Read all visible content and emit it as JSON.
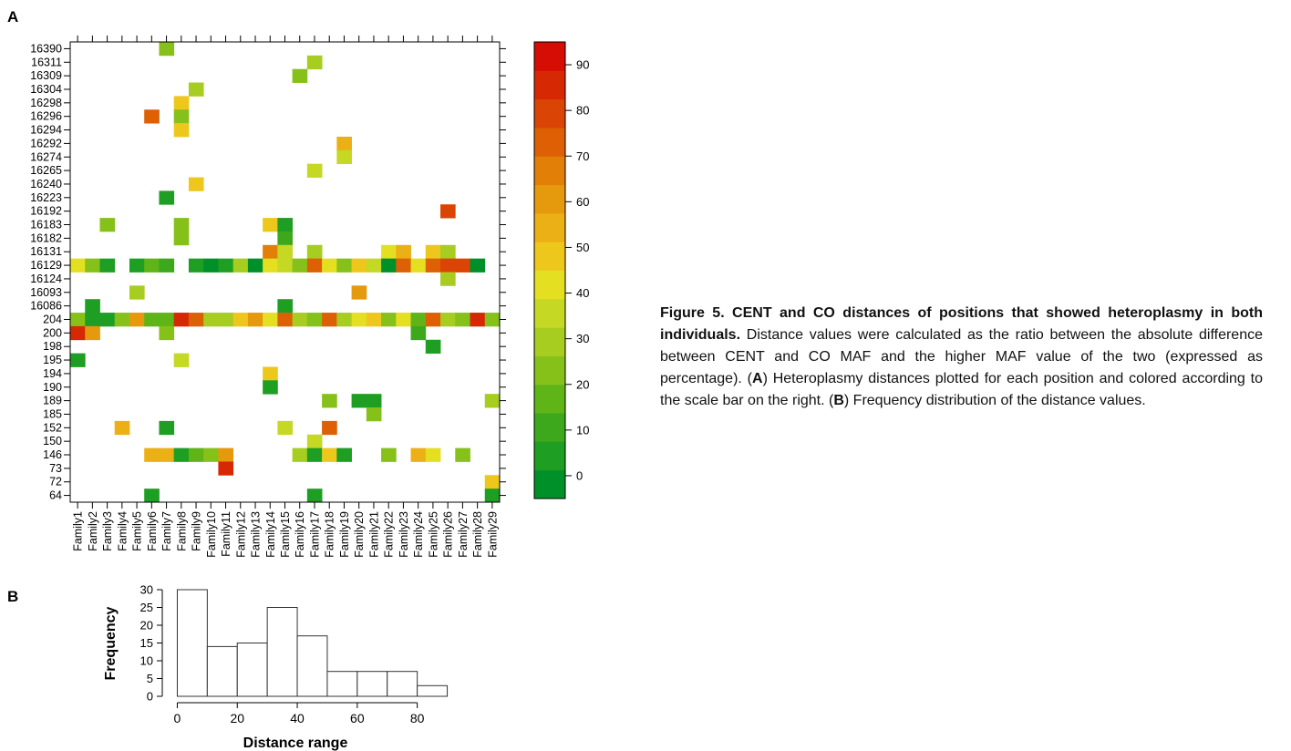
{
  "panel_a_label": "A",
  "panel_b_label": "B",
  "caption": {
    "title": "Figure 5. CENT and CO distances of positions that showed heteroplasmy in both individuals.",
    "part1": "Distance values were calculated as the ratio between the absolute difference between CENT and CO MAF and the higher MAF value of the two (expressed as percentage). (",
    "A": "A",
    "part2": ") Heteroplasmy distances plotted for each position and colored according to the scale bar on the right. (",
    "B": "B",
    "part3": ") Frequency distribution of the distance values."
  },
  "chart_data": [
    {
      "type": "heatmap",
      "x_categories": [
        "Family1",
        "Family2",
        "Family3",
        "Family4",
        "Family5",
        "Family6",
        "Family7",
        "Family8",
        "Family9",
        "Family10",
        "Family11",
        "Family12",
        "Family13",
        "Family14",
        "Family15",
        "Family16",
        "Family17",
        "Family18",
        "Family19",
        "Family20",
        "Family21",
        "Family22",
        "Family23",
        "Family24",
        "Family25",
        "Family26",
        "Family27",
        "Family28",
        "Family29"
      ],
      "y_categories": [
        "16390",
        "16311",
        "16309",
        "16304",
        "16298",
        "16296",
        "16294",
        "16292",
        "16274",
        "16265",
        "16240",
        "16223",
        "16192",
        "16183",
        "16182",
        "16131",
        "16129",
        "16124",
        "16093",
        "16086",
        "204",
        "200",
        "198",
        "195",
        "194",
        "190",
        "189",
        "185",
        "152",
        "150",
        "146",
        "73",
        "72",
        "64"
      ],
      "cells": [
        [
          "16390",
          7,
          20
        ],
        [
          "16311",
          17,
          30
        ],
        [
          "16309",
          16,
          25
        ],
        [
          "16304",
          9,
          30
        ],
        [
          "16298",
          8,
          50
        ],
        [
          "16296",
          6,
          75
        ],
        [
          "16296",
          8,
          20
        ],
        [
          "16294",
          8,
          50
        ],
        [
          "16292",
          19,
          55
        ],
        [
          "16274",
          19,
          35
        ],
        [
          "16265",
          17,
          35
        ],
        [
          "16240",
          9,
          50
        ],
        [
          "16223",
          7,
          5
        ],
        [
          "16192",
          26,
          80
        ],
        [
          "16183",
          3,
          20
        ],
        [
          "16183",
          8,
          20
        ],
        [
          "16183",
          14,
          50
        ],
        [
          "16183",
          15,
          5
        ],
        [
          "16182",
          8,
          20
        ],
        [
          "16182",
          15,
          10
        ],
        [
          "16131",
          14,
          65
        ],
        [
          "16131",
          15,
          35
        ],
        [
          "16131",
          17,
          30
        ],
        [
          "16131",
          22,
          40
        ],
        [
          "16131",
          23,
          55
        ],
        [
          "16131",
          25,
          50
        ],
        [
          "16131",
          26,
          30
        ],
        [
          "16129",
          1,
          40
        ],
        [
          "16129",
          2,
          20
        ],
        [
          "16129",
          3,
          5
        ],
        [
          "16129",
          5,
          5
        ],
        [
          "16129",
          6,
          15
        ],
        [
          "16129",
          7,
          10
        ],
        [
          "16129",
          9,
          5
        ],
        [
          "16129",
          10,
          0
        ],
        [
          "16129",
          11,
          5
        ],
        [
          "16129",
          12,
          30
        ],
        [
          "16129",
          13,
          0
        ],
        [
          "16129",
          14,
          40
        ],
        [
          "16129",
          15,
          35
        ],
        [
          "16129",
          16,
          25
        ],
        [
          "16129",
          17,
          70
        ],
        [
          "16129",
          18,
          40
        ],
        [
          "16129",
          19,
          20
        ],
        [
          "16129",
          20,
          50
        ],
        [
          "16129",
          21,
          35
        ],
        [
          "16129",
          22,
          0
        ],
        [
          "16129",
          23,
          70
        ],
        [
          "16129",
          24,
          40
        ],
        [
          "16129",
          25,
          75
        ],
        [
          "16129",
          26,
          80
        ],
        [
          "16129",
          27,
          80
        ],
        [
          "16129",
          28,
          0
        ],
        [
          "16124",
          26,
          30
        ],
        [
          "16093",
          5,
          30
        ],
        [
          "16093",
          20,
          60
        ],
        [
          "16086",
          2,
          5
        ],
        [
          "16086",
          15,
          5
        ],
        [
          "204",
          1,
          20
        ],
        [
          "204",
          2,
          5
        ],
        [
          "204",
          3,
          5
        ],
        [
          "204",
          4,
          20
        ],
        [
          "204",
          5,
          60
        ],
        [
          "204",
          6,
          15
        ],
        [
          "204",
          7,
          15
        ],
        [
          "204",
          8,
          85
        ],
        [
          "204",
          9,
          70
        ],
        [
          "204",
          10,
          30
        ],
        [
          "204",
          11,
          30
        ],
        [
          "204",
          12,
          45
        ],
        [
          "204",
          13,
          60
        ],
        [
          "204",
          14,
          40
        ],
        [
          "204",
          15,
          70
        ],
        [
          "204",
          16,
          30
        ],
        [
          "204",
          17,
          20
        ],
        [
          "204",
          18,
          70
        ],
        [
          "204",
          19,
          30
        ],
        [
          "204",
          20,
          40
        ],
        [
          "204",
          21,
          50
        ],
        [
          "204",
          22,
          20
        ],
        [
          "204",
          23,
          40
        ],
        [
          "204",
          24,
          15
        ],
        [
          "204",
          25,
          70
        ],
        [
          "204",
          26,
          30
        ],
        [
          "204",
          27,
          20
        ],
        [
          "204",
          28,
          85
        ],
        [
          "204",
          29,
          20
        ],
        [
          "200",
          1,
          85
        ],
        [
          "200",
          2,
          60
        ],
        [
          "200",
          7,
          20
        ],
        [
          "200",
          24,
          10
        ],
        [
          "198",
          25,
          5
        ],
        [
          "195",
          1,
          5
        ],
        [
          "195",
          8,
          35
        ],
        [
          "194",
          14,
          45
        ],
        [
          "190",
          14,
          5
        ],
        [
          "189",
          18,
          20
        ],
        [
          "189",
          20,
          5
        ],
        [
          "189",
          21,
          5
        ],
        [
          "189",
          29,
          30
        ],
        [
          "185",
          21,
          20
        ],
        [
          "152",
          4,
          55
        ],
        [
          "152",
          7,
          5
        ],
        [
          "152",
          15,
          35
        ],
        [
          "152",
          18,
          70
        ],
        [
          "150",
          17,
          35
        ],
        [
          "146",
          6,
          55
        ],
        [
          "146",
          7,
          55
        ],
        [
          "146",
          8,
          5
        ],
        [
          "146",
          9,
          15
        ],
        [
          "146",
          10,
          25
        ],
        [
          "146",
          11,
          60
        ],
        [
          "146",
          16,
          30
        ],
        [
          "146",
          17,
          5
        ],
        [
          "146",
          18,
          50
        ],
        [
          "146",
          19,
          5
        ],
        [
          "146",
          22,
          25
        ],
        [
          "146",
          24,
          55
        ],
        [
          "146",
          25,
          40
        ],
        [
          "146",
          27,
          25
        ],
        [
          "73",
          11,
          85
        ],
        [
          "72",
          29,
          45
        ],
        [
          "64",
          6,
          5
        ],
        [
          "64",
          17,
          5
        ],
        [
          "64",
          29,
          5
        ]
      ],
      "colorbar": {
        "ticks": [
          0,
          10,
          20,
          30,
          40,
          50,
          60,
          70,
          80,
          90
        ],
        "range": [
          -5,
          95
        ],
        "colors_low_to_high": [
          "#00902a",
          "#1e9e22",
          "#3da81c",
          "#5fb517",
          "#86c11a",
          "#a6cd1f",
          "#c5d824",
          "#e5df22",
          "#eec71c",
          "#ebb016",
          "#e5990d",
          "#e17f06",
          "#dd6005",
          "#da4404",
          "#d72804",
          "#d50d05"
        ]
      }
    },
    {
      "type": "bar",
      "bins": [
        [
          0,
          10
        ],
        [
          10,
          20
        ],
        [
          20,
          30
        ],
        [
          30,
          40
        ],
        [
          40,
          50
        ],
        [
          50,
          60
        ],
        [
          60,
          70
        ],
        [
          70,
          80
        ],
        [
          80,
          90
        ]
      ],
      "values": [
        30,
        14,
        15,
        25,
        17,
        7,
        7,
        7,
        3
      ],
      "xlabel": "Distance range",
      "ylabel": "Frequency",
      "x_ticks": [
        0,
        20,
        40,
        60,
        80
      ],
      "y_ticks": [
        0,
        5,
        10,
        15,
        20,
        25,
        30
      ],
      "xlim": [
        -5,
        95
      ],
      "ylim": [
        0,
        30
      ]
    }
  ]
}
